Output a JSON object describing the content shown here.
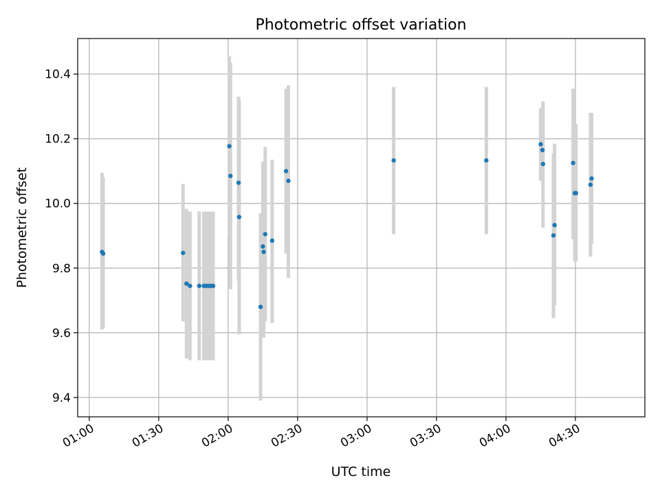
{
  "chart_data": {
    "type": "scatter",
    "title": "Photometric offset variation",
    "xlabel": "UTC time",
    "ylabel": "Photometric offset",
    "x_unit": "UTC time of day",
    "xlim": [
      "00:55",
      "05:00"
    ],
    "ylim": [
      9.34,
      10.51
    ],
    "x_ticks": [
      "01:00",
      "01:30",
      "02:00",
      "02:30",
      "03:00",
      "03:30",
      "04:00",
      "04:30"
    ],
    "y_ticks": [
      9.4,
      9.6,
      9.8,
      10.0,
      10.2,
      10.4
    ],
    "y_tick_labels": [
      "9.4",
      "9.6",
      "9.8",
      "10.0",
      "10.2",
      "10.4"
    ],
    "grid": true,
    "point_color": "#1f77b4",
    "errorbar_color": "#d3d3d3",
    "points": [
      {
        "x": "01:05:30",
        "y": 9.85,
        "ylo": 9.61,
        "yhi": 10.095
      },
      {
        "x": "01:06:00",
        "y": 9.845,
        "ylo": 9.615,
        "yhi": 10.08
      },
      {
        "x": "01:40:30",
        "y": 9.847,
        "ylo": 9.635,
        "yhi": 10.06
      },
      {
        "x": "01:42:00",
        "y": 9.752,
        "ylo": 9.52,
        "yhi": 9.983
      },
      {
        "x": "01:43:30",
        "y": 9.745,
        "ylo": 9.515,
        "yhi": 9.975
      },
      {
        "x": "01:47:30",
        "y": 9.745,
        "ylo": 9.515,
        "yhi": 9.975
      },
      {
        "x": "01:49:30",
        "y": 9.745,
        "ylo": 9.515,
        "yhi": 9.975
      },
      {
        "x": "01:50:30",
        "y": 9.745,
        "ylo": 9.515,
        "yhi": 9.975
      },
      {
        "x": "01:51:30",
        "y": 9.745,
        "ylo": 9.515,
        "yhi": 9.975
      },
      {
        "x": "01:52:30",
        "y": 9.745,
        "ylo": 9.515,
        "yhi": 9.975
      },
      {
        "x": "01:53:30",
        "y": 9.745,
        "ylo": 9.515,
        "yhi": 9.975
      },
      {
        "x": "02:00:30",
        "y": 10.177,
        "ylo": 9.895,
        "yhi": 10.455
      },
      {
        "x": "02:01:00",
        "y": 10.085,
        "ylo": 9.735,
        "yhi": 10.435
      },
      {
        "x": "02:04:30",
        "y": 10.064,
        "ylo": 9.76,
        "yhi": 10.33
      },
      {
        "x": "02:04:45",
        "y": 9.958,
        "ylo": 9.595,
        "yhi": 10.32
      },
      {
        "x": "02:14:00",
        "y": 9.68,
        "ylo": 9.39,
        "yhi": 9.97
      },
      {
        "x": "02:15:00",
        "y": 9.867,
        "ylo": 9.605,
        "yhi": 10.13
      },
      {
        "x": "02:15:20",
        "y": 9.85,
        "ylo": 9.585,
        "yhi": 10.115
      },
      {
        "x": "02:16:00",
        "y": 9.905,
        "ylo": 9.635,
        "yhi": 10.175
      },
      {
        "x": "02:19:00",
        "y": 9.885,
        "ylo": 9.63,
        "yhi": 10.135
      },
      {
        "x": "02:25:00",
        "y": 10.1,
        "ylo": 9.845,
        "yhi": 10.355
      },
      {
        "x": "02:26:00",
        "y": 10.07,
        "ylo": 9.77,
        "yhi": 10.365
      },
      {
        "x": "03:11:30",
        "y": 10.133,
        "ylo": 9.905,
        "yhi": 10.36
      },
      {
        "x": "03:51:30",
        "y": 10.133,
        "ylo": 9.905,
        "yhi": 10.36
      },
      {
        "x": "04:15:00",
        "y": 10.183,
        "ylo": 10.07,
        "yhi": 10.295
      },
      {
        "x": "04:15:45",
        "y": 10.165,
        "ylo": 10.115,
        "yhi": 10.215
      },
      {
        "x": "04:16:00",
        "y": 10.122,
        "ylo": 9.925,
        "yhi": 10.315
      },
      {
        "x": "04:20:30",
        "y": 9.901,
        "ylo": 9.645,
        "yhi": 10.155
      },
      {
        "x": "04:21:00",
        "y": 9.933,
        "ylo": 9.685,
        "yhi": 10.185
      },
      {
        "x": "04:29:00",
        "y": 10.125,
        "ylo": 9.89,
        "yhi": 10.355
      },
      {
        "x": "04:29:45",
        "y": 10.032,
        "ylo": 9.82,
        "yhi": 10.245
      },
      {
        "x": "04:30:15",
        "y": 10.032,
        "ylo": 9.82,
        "yhi": 10.245
      },
      {
        "x": "04:36:30",
        "y": 10.058,
        "ylo": 9.835,
        "yhi": 10.28
      },
      {
        "x": "04:37:00",
        "y": 10.077,
        "ylo": 9.875,
        "yhi": 10.28
      }
    ]
  }
}
